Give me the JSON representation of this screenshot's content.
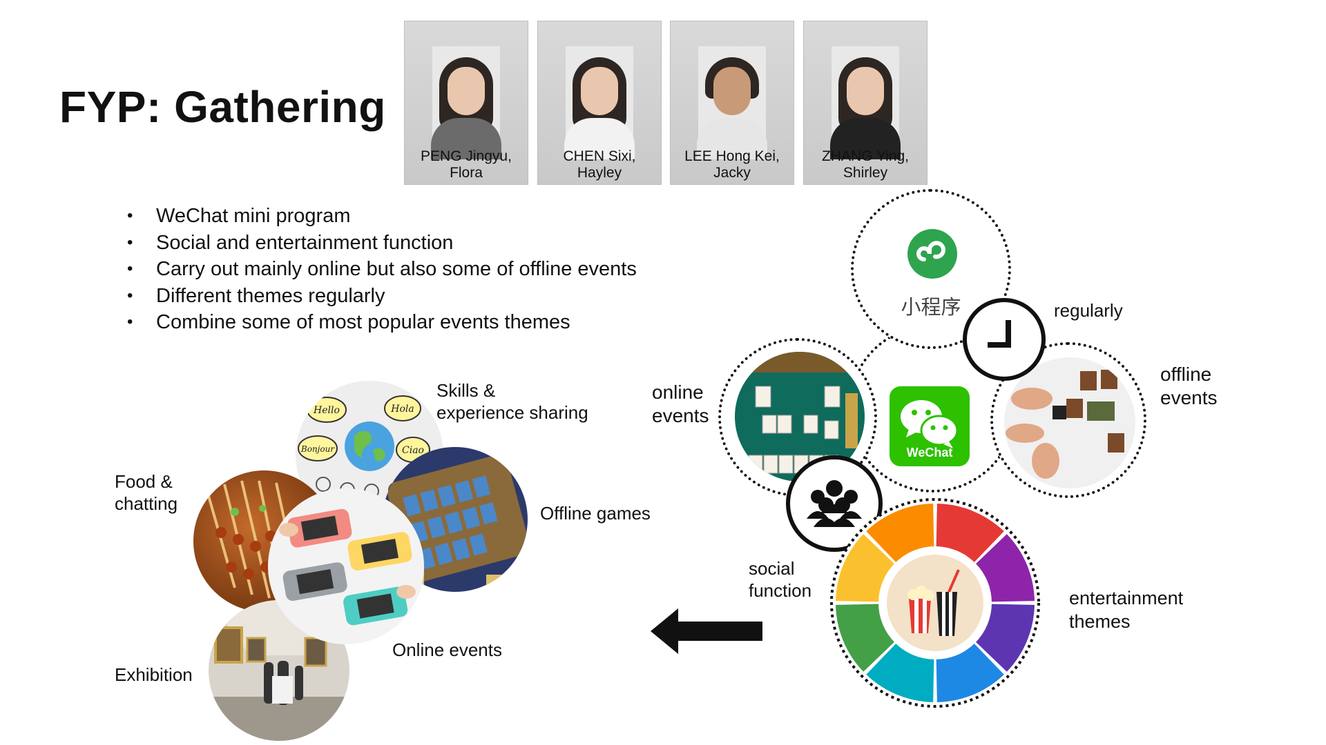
{
  "title": "FYP: Gathering",
  "members": [
    {
      "name_line1": "PENG Jingyu,",
      "name_line2": "Flora"
    },
    {
      "name_line1": "CHEN Sixi,",
      "name_line2": "Hayley"
    },
    {
      "name_line1": "LEE Hong Kei,",
      "name_line2": "Jacky"
    },
    {
      "name_line1": "ZHANG Ying,",
      "name_line2": "Shirley"
    }
  ],
  "bullets": [
    "WeChat mini program",
    "Social and entertainment function",
    "Carry out mainly online but also some of offline events",
    "Different themes regularly",
    "Combine some of most popular events themes"
  ],
  "collage": {
    "skills_line1": "Skills &",
    "skills_line2": "experience sharing",
    "food_line1": "Food &",
    "food_line2": "chatting",
    "offline_games": "Offline games",
    "online_events": "Online events",
    "exhibition": "Exhibition",
    "speech_bubbles": [
      "Hello",
      "Hola",
      "Bonjour",
      "Ciao"
    ]
  },
  "diagram": {
    "mini_program_label": "小程序",
    "regularly": "regularly",
    "online_line1": "online",
    "online_line2": "events",
    "offline_line1": "offline",
    "offline_line2": "events",
    "wechat_label": "WeChat",
    "social_line1": "social",
    "social_line2": "function",
    "ent_line1": "entertainment",
    "ent_line2": "themes"
  },
  "colors": {
    "wechat_green": "#2dc100",
    "mini_program_green": "#2ea44f",
    "wheel": [
      "#e53935",
      "#8e24aa",
      "#5e35b1",
      "#1e88e5",
      "#00acc1",
      "#43a047",
      "#fbc02d",
      "#fb8c00"
    ]
  }
}
